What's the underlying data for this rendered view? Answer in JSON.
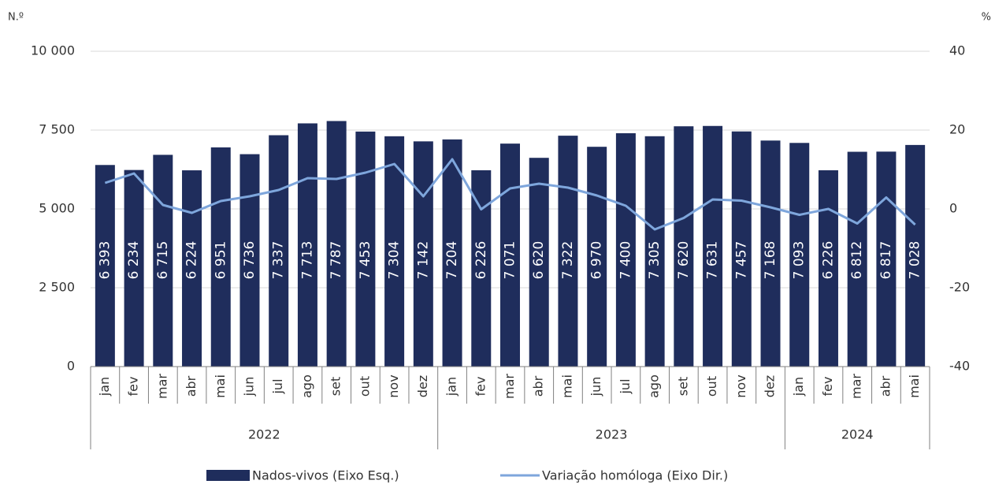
{
  "chart_data": {
    "type": "bar_line",
    "y_unit": "N.º",
    "y2_unit": "%",
    "category_groups": [
      {
        "label": "2022",
        "categories": [
          "jan",
          "fev",
          "mar",
          "abr",
          "mai",
          "jun",
          "jul",
          "ago",
          "set",
          "out",
          "nov",
          "dez"
        ]
      },
      {
        "label": "2023",
        "categories": [
          "jan",
          "fev",
          "mar",
          "abr",
          "mai",
          "jun",
          "jul",
          "ago",
          "set",
          "out",
          "nov",
          "dez"
        ]
      },
      {
        "label": "2024",
        "categories": [
          "jan",
          "fev",
          "mar",
          "abr",
          "mai"
        ]
      }
    ],
    "series": [
      {
        "name": "Nados-vivos (Eixo Esq.)",
        "type": "bar",
        "color": "#1f2d5c",
        "values": [
          6393,
          6234,
          6715,
          6224,
          6951,
          6736,
          7337,
          7713,
          7787,
          7453,
          7304,
          7142,
          7204,
          6226,
          7071,
          6620,
          7322,
          6970,
          7400,
          7305,
          7620,
          7631,
          7457,
          7168,
          7093,
          6226,
          6812,
          6817,
          7028
        ],
        "value_labels": [
          "6 393",
          "6 234",
          "6 715",
          "6 224",
          "6 951",
          "6 736",
          "7 337",
          "7 713",
          "7 787",
          "7 453",
          "7 304",
          "7 142",
          "7 204",
          "6 226",
          "7 071",
          "6 620",
          "7 322",
          "6 970",
          "7 400",
          "7 305",
          "7 620",
          "7 631",
          "7 457",
          "7 168",
          "7 093",
          "6 226",
          "6 812",
          "6 817",
          "7 028"
        ]
      },
      {
        "name": "Variação homóloga (Eixo Dir.)",
        "type": "line",
        "axis": "y2",
        "color": "#7ea6dc",
        "values": [
          6.6,
          9,
          1,
          -1,
          2,
          3.2,
          4.8,
          7.8,
          7.6,
          9.2,
          11.4,
          3.2,
          12.6,
          -0.1,
          5.2,
          6.4,
          5.4,
          3.4,
          0.8,
          -5.2,
          -2.3,
          2.4,
          2.1,
          0.4,
          -1.5,
          0,
          -3.7,
          2.9,
          -4
        ]
      }
    ],
    "ylim": [
      0,
      10000
    ],
    "yticks": [
      0,
      {
        "value": 2500,
        "label": "2 500"
      },
      {
        "value": 5000,
        "label": "5 000"
      },
      {
        "value": 7500,
        "label": "7 500"
      },
      {
        "value": 10000,
        "label": "10 000"
      }
    ],
    "y2lim": [
      -40,
      40
    ],
    "y2ticks": [
      -40,
      -20,
      0,
      20,
      40
    ],
    "grid": true
  }
}
